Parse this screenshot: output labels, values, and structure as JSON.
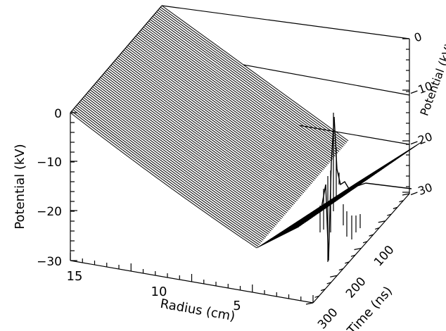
{
  "chart_data": {
    "type": "surface-3d",
    "title": "",
    "xlabel": "Radius (cm)",
    "ylabel": "Potential (kV)",
    "zlabel": "Time (ns)",
    "right_axis_label": "Potential (kV)",
    "x_ticks": [
      "15",
      "10",
      "5"
    ],
    "y_ticks": [
      "0",
      "−10",
      "−20",
      "−30"
    ],
    "z_ticks": [
      "300",
      "200",
      "100"
    ],
    "right_ticks": [
      "0",
      "−10",
      "−20",
      "−30"
    ],
    "xlim": [
      15,
      0
    ],
    "ylim": [
      -30,
      0
    ],
    "zlim": [
      300,
      0
    ],
    "grid": false,
    "series": [
      {
        "values_x": [
          15,
          13,
          11,
          9,
          7,
          5,
          4
        ],
        "values_y": [
          0,
          -4.5,
          -9.5,
          -15,
          -21,
          -27,
          -29
        ]
      }
    ]
  }
}
